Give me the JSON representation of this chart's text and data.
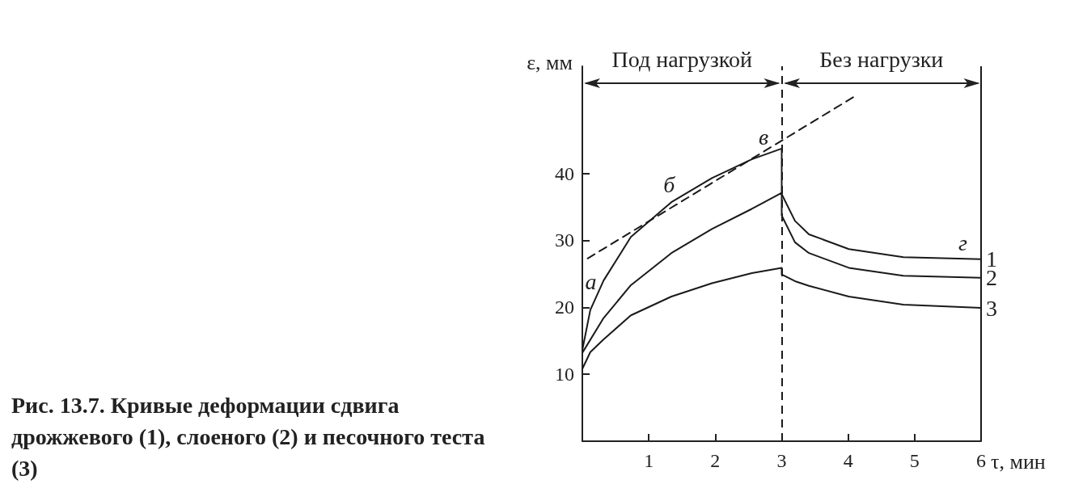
{
  "chart_data": {
    "type": "line",
    "xlabel": "τ, мин",
    "ylabel": "ε, мм",
    "xlim": [
      0,
      6
    ],
    "ylim": [
      0,
      56
    ],
    "xticks": [
      1,
      2,
      3,
      4,
      5,
      6
    ],
    "yticks": [
      10,
      20,
      30,
      40
    ],
    "marker": "none",
    "line_style": "solid",
    "series": [
      {
        "name": "1",
        "color": "#1a1a1a",
        "x": [
          0,
          0.12,
          0.32,
          0.73,
          1.34,
          1.95,
          2.55,
          3,
          3,
          3.2,
          3.41,
          4.01,
          4.83,
          6
        ],
        "values": [
          13.6,
          19.6,
          24.0,
          30.5,
          35.7,
          39.3,
          42.1,
          43.7,
          36.9,
          32.9,
          30.9,
          28.7,
          27.5,
          27.2
        ]
      },
      {
        "name": "2",
        "color": "#1a1a1a",
        "x": [
          0,
          0.32,
          0.73,
          1.34,
          1.95,
          2.55,
          3,
          3,
          3.2,
          3.41,
          4.01,
          4.83,
          6
        ],
        "values": [
          13.2,
          18.4,
          23.3,
          28.1,
          31.7,
          34.7,
          37.1,
          33.7,
          29.7,
          28.1,
          25.9,
          24.7,
          24.4
        ]
      },
      {
        "name": "3",
        "color": "#1a1a1a",
        "x": [
          0,
          0.12,
          0.32,
          0.73,
          1.34,
          1.95,
          2.55,
          3,
          3,
          3.2,
          3.41,
          4.01,
          4.83,
          6
        ],
        "values": [
          10.8,
          13.3,
          15.2,
          18.8,
          21.6,
          23.6,
          25.1,
          25.9,
          24.9,
          23.9,
          23.2,
          21.6,
          20.4,
          19.9
        ]
      },
      {
        "type": "line",
        "line_style": "dashed",
        "color": "#1a1a1a",
        "x": [
          0.08,
          4.08
        ],
        "values": [
          27.3,
          51.4
        ]
      }
    ],
    "ref_lines": [
      {
        "axis": "x",
        "value": 3,
        "line_style": "dashed",
        "color": "#1a1a1a"
      },
      {
        "axis": "x",
        "value": 6,
        "line_style": "solid",
        "color": "#1a1a1a"
      }
    ],
    "annotations": [
      "Под нагрузкой",
      "Без нагрузки",
      {
        "text": "а",
        "x": 0.2,
        "y": 21.4
      },
      {
        "text": "б",
        "x": 1.38,
        "y": 35.9
      },
      {
        "text": "в",
        "x": 2.8,
        "y": 43.0
      },
      {
        "text": "г",
        "x": 5.8,
        "y": 27.2
      },
      "Рис. 13.7. Кривые деформации сдвига дрожжевого (1), слоеного (2) и песочного теста (3)"
    ]
  }
}
